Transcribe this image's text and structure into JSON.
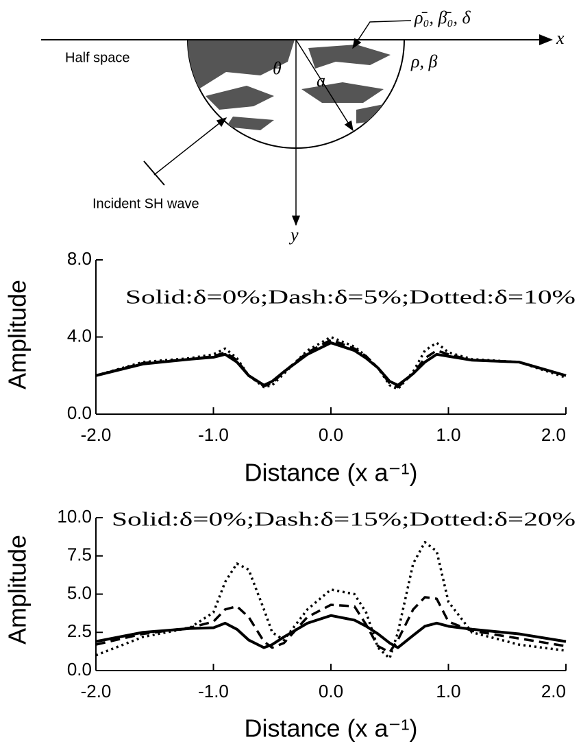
{
  "diagram": {
    "material_label": "ρ̄₀, β̄₀, δ",
    "x_axis": "x",
    "half_space_props": "ρ, β",
    "half_space": "Half space",
    "angle": "θ",
    "radius": "a",
    "incident": "Incident SH wave",
    "y_axis": "y"
  },
  "chart_data": [
    {
      "type": "line",
      "annotation": "Solid:δ=0%;Dash:δ=5%;Dotted:δ=10%",
      "x_label": "Distance (x a⁻¹)",
      "y_label": "Amplitude",
      "x": [
        -2,
        -1.6,
        -1.2,
        -1.0,
        -0.9,
        -0.8,
        -0.7,
        -0.57,
        -0.5,
        -0.4,
        -0.2,
        0,
        0.2,
        0.3,
        0.4,
        0.5,
        0.57,
        0.7,
        0.8,
        0.9,
        1.0,
        1.2,
        1.6,
        2.0
      ],
      "series": [
        {
          "color": "#000000",
          "dash": "solid",
          "values": [
            2.0,
            2.6,
            2.85,
            2.95,
            3.1,
            2.7,
            2.0,
            1.5,
            1.7,
            2.2,
            3.1,
            3.7,
            3.3,
            2.9,
            2.4,
            1.7,
            1.5,
            2.1,
            2.7,
            3.1,
            3.0,
            2.8,
            2.7,
            2.0
          ]
        },
        {
          "color": "#000000",
          "dash": "dash",
          "values": [
            2.0,
            2.65,
            2.85,
            3.0,
            3.2,
            2.8,
            2.0,
            1.45,
            1.6,
            2.2,
            3.2,
            3.85,
            3.4,
            3.0,
            2.4,
            1.6,
            1.4,
            2.1,
            2.9,
            3.3,
            3.1,
            2.8,
            2.7,
            2.0
          ]
        },
        {
          "color": "#000000",
          "dash": "dotted",
          "values": [
            2.0,
            2.7,
            2.9,
            3.1,
            3.4,
            2.9,
            2.0,
            1.4,
            1.5,
            2.1,
            3.3,
            4.0,
            3.5,
            3.0,
            2.4,
            1.5,
            1.3,
            2.2,
            3.3,
            3.7,
            3.2,
            2.85,
            2.7,
            1.9
          ]
        }
      ],
      "xlim": [
        -2,
        2
      ],
      "xticks": [
        {
          "value": -2,
          "label": "-2.0"
        },
        {
          "value": -1,
          "label": "-1.0"
        },
        {
          "value": 0,
          "label": "0.0"
        },
        {
          "value": 1,
          "label": "1.0"
        },
        {
          "value": 2,
          "label": "2.0"
        }
      ],
      "ylim": [
        0,
        8
      ],
      "yticks": [
        {
          "value": 0,
          "label": "0.0"
        },
        {
          "value": 4,
          "label": "4.0"
        },
        {
          "value": 8,
          "label": "8.0"
        }
      ]
    },
    {
      "type": "line",
      "annotation": "Solid:δ=0%;Dash:δ=15%;Dotted:δ=20%",
      "x_label": "Distance (x a⁻¹)",
      "y_label": "Amplitude",
      "x": [
        -2,
        -1.6,
        -1.2,
        -1.0,
        -0.9,
        -0.8,
        -0.7,
        -0.57,
        -0.5,
        -0.4,
        -0.2,
        0,
        0.2,
        0.3,
        0.4,
        0.5,
        0.57,
        0.7,
        0.8,
        0.9,
        1.0,
        1.2,
        1.6,
        2.0
      ],
      "series": [
        {
          "color": "#000000",
          "dash": "solid",
          "values": [
            1.9,
            2.5,
            2.75,
            2.8,
            3.1,
            2.7,
            2.0,
            1.5,
            1.7,
            2.2,
            3.1,
            3.6,
            3.3,
            2.9,
            2.4,
            1.8,
            1.5,
            2.3,
            2.9,
            3.1,
            2.9,
            2.7,
            2.4,
            1.9
          ]
        },
        {
          "color": "#000000",
          "dash": "dash",
          "values": [
            1.7,
            2.4,
            2.8,
            3.2,
            4.0,
            4.2,
            3.5,
            1.9,
            1.5,
            1.8,
            3.5,
            4.3,
            4.2,
            3.0,
            1.6,
            1.2,
            2.0,
            4.0,
            4.8,
            4.7,
            3.2,
            2.6,
            2.1,
            1.6
          ]
        },
        {
          "color": "#000000",
          "dash": "dotted",
          "values": [
            1.0,
            2.2,
            2.8,
            3.8,
            5.8,
            7.0,
            6.6,
            4.0,
            2.5,
            2.0,
            4.0,
            5.3,
            5.0,
            3.8,
            1.5,
            0.8,
            2.5,
            7.0,
            8.4,
            7.8,
            4.5,
            2.5,
            1.7,
            1.3
          ]
        }
      ],
      "xlim": [
        -2,
        2
      ],
      "xticks": [
        {
          "value": -2,
          "label": "-2.0"
        },
        {
          "value": -1,
          "label": "-1.0"
        },
        {
          "value": 0,
          "label": "0.0"
        },
        {
          "value": 1,
          "label": "1.0"
        },
        {
          "value": 2,
          "label": "2.0"
        }
      ],
      "ylim": [
        0,
        10
      ],
      "yticks": [
        {
          "value": 0,
          "label": "0.0"
        },
        {
          "value": 2.5,
          "label": "2.5"
        },
        {
          "value": 5,
          "label": "5.0"
        },
        {
          "value": 7.5,
          "label": "7.5"
        },
        {
          "value": 10,
          "label": "10.0"
        }
      ]
    }
  ]
}
